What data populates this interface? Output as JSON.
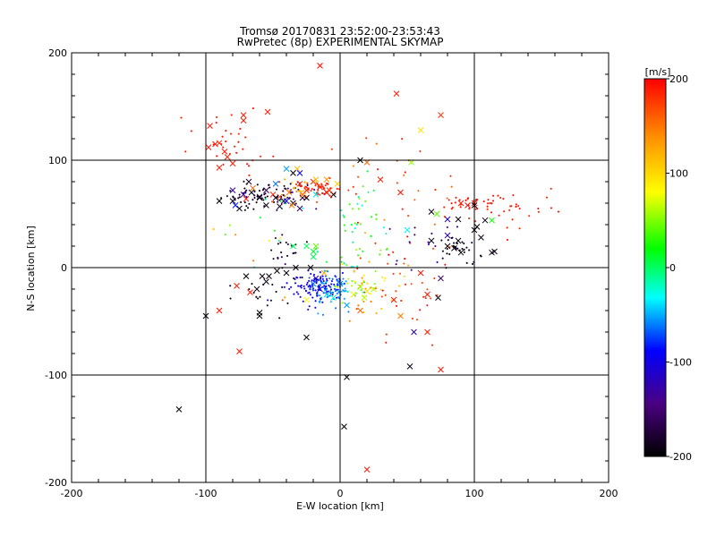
{
  "chart_data": {
    "type": "scatter",
    "title_line1": "Tromsø 20170831 23:52:00-23:53:43",
    "title_line2": "RwPretec (8p) EXPERIMENTAL SKYMAP",
    "xlabel": "E-W location [km]",
    "ylabel": "N-S location [km]",
    "xlim": [
      -200,
      200
    ],
    "ylim": [
      -200,
      200
    ],
    "x_ticks": [
      -200,
      -100,
      0,
      100,
      200
    ],
    "y_ticks": [
      -200,
      -100,
      0,
      100,
      200
    ],
    "x_tick_labels": [
      "-200",
      "-100",
      "0",
      "100",
      "200"
    ],
    "y_tick_labels": [
      "-200",
      "-100",
      "0",
      "100",
      "200"
    ],
    "grid_lines_x": [
      -100,
      0,
      100
    ],
    "grid_lines_y": [
      -100,
      0,
      100
    ],
    "colorbar": {
      "label": "[m/s]",
      "range": [
        -200,
        200
      ],
      "ticks": [
        200,
        100,
        0,
        -100,
        -200
      ],
      "tick_labels": [
        "200",
        "100",
        "0",
        "-100",
        "-200"
      ],
      "colormap": [
        "#000000",
        "#4b0082",
        "#0000ff",
        "#00ffff",
        "#00ff00",
        "#ffff00",
        "#ff8c00",
        "#ff0000"
      ]
    },
    "clusters": [
      {
        "cx": -68,
        "cy": 68,
        "sx": 10,
        "sy": 6,
        "n": 45,
        "v": -185,
        "spread": 20
      },
      {
        "cx": -38,
        "cy": 68,
        "sx": 10,
        "sy": 6,
        "n": 40,
        "v": -160,
        "spread": 60
      },
      {
        "cx": -32,
        "cy": 72,
        "sx": 6,
        "sy": 4,
        "n": 20,
        "v": 130,
        "spread": 40
      },
      {
        "cx": -14,
        "cy": 74,
        "sx": 9,
        "sy": 5,
        "n": 45,
        "v": 185,
        "spread": 20
      },
      {
        "cx": -80,
        "cy": 115,
        "sx": 15,
        "sy": 12,
        "n": 30,
        "v": 190,
        "spread": 15
      },
      {
        "cx": -20,
        "cy": -18,
        "sx": 10,
        "sy": 8,
        "n": 110,
        "v": -95,
        "spread": 20
      },
      {
        "cx": -8,
        "cy": -20,
        "sx": 8,
        "sy": 8,
        "n": 70,
        "v": -55,
        "spread": 25
      },
      {
        "cx": 12,
        "cy": 30,
        "sx": 14,
        "sy": 25,
        "n": 55,
        "v": 20,
        "spread": 90
      },
      {
        "cx": 15,
        "cy": -15,
        "sx": 14,
        "sy": 15,
        "n": 45,
        "v": 100,
        "spread": 110
      },
      {
        "cx": 40,
        "cy": -20,
        "sx": 25,
        "sy": 25,
        "n": 40,
        "v": 180,
        "spread": 40
      },
      {
        "cx": 98,
        "cy": 60,
        "sx": 12,
        "sy": 4,
        "n": 30,
        "v": 192,
        "spread": 10
      },
      {
        "cx": 125,
        "cy": 55,
        "sx": 18,
        "sy": 10,
        "n": 30,
        "v": 190,
        "spread": 15
      },
      {
        "cx": 88,
        "cy": 20,
        "sx": 8,
        "sy": 6,
        "n": 30,
        "v": -190,
        "spread": 15
      },
      {
        "cx": -40,
        "cy": 10,
        "sx": 10,
        "sy": 10,
        "n": 25,
        "v": -175,
        "spread": 30
      },
      {
        "cx": -60,
        "cy": -25,
        "sx": 12,
        "sy": 12,
        "n": 15,
        "v": -190,
        "spread": 15
      },
      {
        "cx": 60,
        "cy": 25,
        "sx": 15,
        "sy": 15,
        "n": 15,
        "v": -130,
        "spread": 80
      },
      {
        "cx": 50,
        "cy": 80,
        "sx": 25,
        "sy": 25,
        "n": 25,
        "v": 170,
        "spread": 60
      },
      {
        "cx": -60,
        "cy": 30,
        "sx": 20,
        "sy": 30,
        "n": 20,
        "v": 80,
        "spread": 200
      }
    ],
    "crosses": [
      [
        -15,
        188,
        195
      ],
      [
        42,
        162,
        190
      ],
      [
        -97,
        132,
        190
      ],
      [
        -72,
        142,
        190
      ],
      [
        -54,
        145,
        190
      ],
      [
        -90,
        116,
        185
      ],
      [
        -86,
        108,
        190
      ],
      [
        -90,
        93,
        190
      ],
      [
        -50,
        68,
        185
      ],
      [
        -30,
        78,
        180
      ],
      [
        -32,
        92,
        120
      ],
      [
        20,
        98,
        160
      ],
      [
        53,
        98,
        60
      ],
      [
        75,
        142,
        180
      ],
      [
        60,
        128,
        100
      ],
      [
        -15,
        75,
        190
      ],
      [
        -10,
        70,
        190
      ],
      [
        -25,
        72,
        190
      ],
      [
        -38,
        70,
        150
      ],
      [
        -45,
        66,
        165
      ],
      [
        -70,
        64,
        195
      ],
      [
        -80,
        62,
        -195
      ],
      [
        -75,
        55,
        -190
      ],
      [
        -55,
        58,
        -190
      ],
      [
        -60,
        65,
        -190
      ],
      [
        -42,
        62,
        -180
      ],
      [
        -35,
        60,
        -185
      ],
      [
        -28,
        65,
        -170
      ],
      [
        -35,
        88,
        -200
      ],
      [
        -80,
        72,
        -120
      ],
      [
        -78,
        58,
        -80
      ],
      [
        -72,
        68,
        -120
      ],
      [
        -55,
        72,
        -170
      ],
      [
        -90,
        62,
        -200
      ],
      [
        -45,
        57,
        -185
      ],
      [
        15,
        100,
        -200
      ],
      [
        -5,
        68,
        -190
      ],
      [
        -25,
        65,
        -190
      ],
      [
        -30,
        55,
        -160
      ],
      [
        -48,
        78,
        -60
      ],
      [
        -40,
        62,
        -90
      ],
      [
        -36,
        58,
        150
      ],
      [
        -28,
        68,
        160
      ],
      [
        -20,
        80,
        190
      ],
      [
        -8,
        72,
        180
      ],
      [
        95,
        58,
        195
      ],
      [
        100,
        60,
        190
      ],
      [
        90,
        60,
        190
      ],
      [
        88,
        45,
        -195
      ],
      [
        80,
        45,
        -110
      ],
      [
        88,
        25,
        -195
      ],
      [
        100,
        35,
        -195
      ],
      [
        100,
        58,
        -190
      ],
      [
        108,
        44,
        -190
      ],
      [
        113,
        44,
        30
      ],
      [
        105,
        28,
        -190
      ],
      [
        113,
        14,
        -190
      ],
      [
        68,
        25,
        -190
      ],
      [
        85,
        18,
        -200
      ],
      [
        90,
        14,
        -200
      ],
      [
        102,
        38,
        -195
      ],
      [
        80,
        20,
        -195
      ],
      [
        75,
        -10,
        -150
      ],
      [
        -35,
        20,
        10
      ],
      [
        -25,
        20,
        10
      ],
      [
        -20,
        10,
        10
      ],
      [
        -33,
        0,
        -195
      ],
      [
        -22,
        0,
        -190
      ],
      [
        -47,
        -3,
        -195
      ],
      [
        -55,
        -13,
        -190
      ],
      [
        -53,
        -8,
        -195
      ],
      [
        -58,
        -8,
        -190
      ],
      [
        -62,
        -20,
        -190
      ],
      [
        -70,
        -8,
        -200
      ],
      [
        -77,
        -17,
        190
      ],
      [
        -67,
        -23,
        190
      ],
      [
        -40,
        -5,
        -195
      ],
      [
        -15,
        -20,
        -90
      ],
      [
        -20,
        -15,
        -60
      ],
      [
        -10,
        -25,
        -35
      ],
      [
        -5,
        -28,
        -20
      ],
      [
        -25,
        -30,
        90
      ],
      [
        -18,
        -10,
        -110
      ],
      [
        0,
        -15,
        -60
      ],
      [
        10,
        -25,
        80
      ],
      [
        18,
        -28,
        70
      ],
      [
        20,
        -22,
        100
      ],
      [
        25,
        -20,
        70
      ],
      [
        15,
        -18,
        60
      ],
      [
        65,
        -25,
        190
      ],
      [
        73,
        -28,
        -195
      ],
      [
        55,
        -60,
        -120
      ],
      [
        75,
        -95,
        190
      ],
      [
        52,
        -92,
        -190
      ],
      [
        5,
        -102,
        -200
      ],
      [
        3,
        -148,
        -200
      ],
      [
        -120,
        -132,
        -200
      ],
      [
        -100,
        -45,
        -195
      ],
      [
        -60,
        -42,
        -195
      ],
      [
        -90,
        -40,
        190
      ],
      [
        -75,
        -78,
        190
      ],
      [
        20,
        -188,
        190
      ],
      [
        65,
        -60,
        190
      ],
      [
        60,
        -5,
        190
      ],
      [
        -98,
        112,
        190
      ],
      [
        -93,
        115,
        190
      ],
      [
        -84,
        103,
        190
      ],
      [
        -80,
        97,
        190
      ],
      [
        -72,
        137,
        190
      ],
      [
        -48,
        65,
        -185
      ],
      [
        -60,
        66,
        -185
      ],
      [
        -66,
        70,
        -185
      ],
      [
        -68,
        80,
        -185
      ],
      [
        -65,
        74,
        160
      ],
      [
        -18,
        68,
        -35
      ],
      [
        -18,
        82,
        120
      ],
      [
        -10,
        82,
        140
      ],
      [
        -2,
        78,
        110
      ],
      [
        45,
        70,
        190
      ],
      [
        30,
        82,
        190
      ],
      [
        72,
        50,
        50
      ],
      [
        80,
        30,
        -120
      ],
      [
        68,
        52,
        -190
      ],
      [
        50,
        35,
        -30
      ],
      [
        115,
        15,
        -190
      ],
      [
        -40,
        92,
        -50
      ],
      [
        -30,
        88,
        -90
      ],
      [
        -18,
        20,
        50
      ],
      [
        -20,
        15,
        20
      ],
      [
        -12,
        -5,
        130
      ],
      [
        5,
        -35,
        -50
      ],
      [
        15,
        -40,
        160
      ],
      [
        40,
        -30,
        190
      ],
      [
        45,
        -45,
        150
      ],
      [
        -25,
        -65,
        -190
      ],
      [
        -60,
        -45,
        -195
      ]
    ]
  }
}
